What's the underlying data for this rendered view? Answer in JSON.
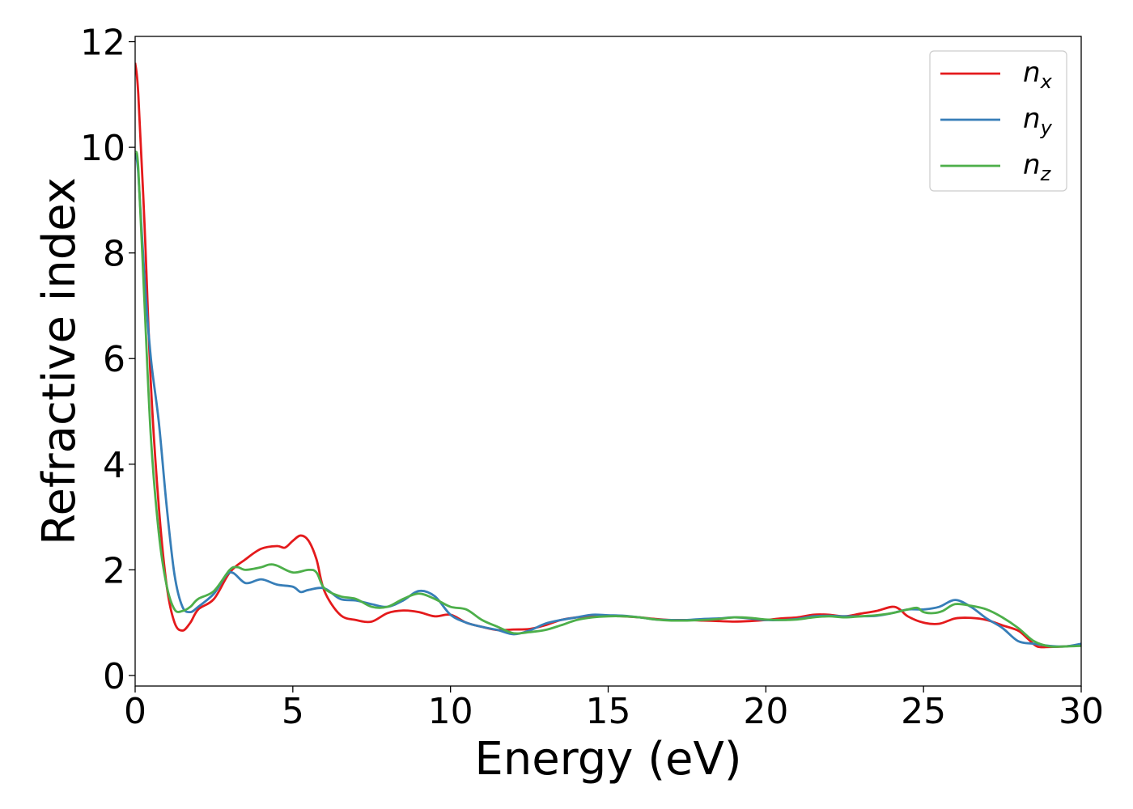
{
  "chart_data": {
    "type": "line",
    "title": "",
    "xlabel": "Energy (eV)",
    "ylabel": "Refractive index",
    "xlim": [
      0,
      30
    ],
    "ylim": [
      -0.2,
      12.1
    ],
    "xticks": [
      0,
      5,
      10,
      15,
      20,
      25,
      30
    ],
    "yticks": [
      0,
      2,
      4,
      6,
      8,
      10,
      12
    ],
    "grid": false,
    "legend_position": "top-right",
    "colors": {
      "n_x": "#e41a1c",
      "n_y": "#377eb8",
      "n_z": "#4daf4a"
    },
    "legend": [
      {
        "key": "n_x",
        "base": "n",
        "sub": "x"
      },
      {
        "key": "n_y",
        "base": "n",
        "sub": "y"
      },
      {
        "key": "n_z",
        "base": "n",
        "sub": "z"
      }
    ],
    "series": [
      {
        "key": "n_x",
        "x": [
          0,
          0.1,
          0.3,
          0.5,
          0.75,
          1.0,
          1.25,
          1.5,
          1.75,
          2.0,
          2.5,
          3.0,
          3.5,
          4.0,
          4.5,
          4.75,
          5.0,
          5.25,
          5.5,
          5.75,
          6.0,
          6.5,
          7.0,
          7.5,
          8.0,
          8.5,
          9.0,
          9.5,
          10.0,
          10.5,
          11.0,
          11.5,
          12.0,
          12.5,
          13.0,
          13.5,
          14.0,
          14.5,
          15.0,
          15.5,
          16.0,
          16.5,
          17.0,
          17.5,
          18.0,
          18.5,
          19.0,
          19.5,
          20.0,
          20.5,
          21.0,
          21.5,
          22.0,
          22.5,
          23.0,
          23.5,
          24.0,
          24.25,
          24.5,
          25.0,
          25.5,
          26.0,
          26.5,
          27.0,
          27.5,
          28.0,
          28.3,
          28.6,
          29.0,
          29.5,
          30.0
        ],
        "y": [
          11.6,
          11.0,
          8.5,
          5.5,
          3.2,
          1.7,
          1.0,
          0.85,
          1.0,
          1.25,
          1.45,
          1.95,
          2.2,
          2.4,
          2.45,
          2.42,
          2.55,
          2.65,
          2.55,
          2.2,
          1.6,
          1.15,
          1.05,
          1.02,
          1.18,
          1.23,
          1.2,
          1.12,
          1.15,
          1.0,
          0.92,
          0.86,
          0.87,
          0.88,
          0.95,
          1.05,
          1.1,
          1.12,
          1.13,
          1.12,
          1.1,
          1.07,
          1.05,
          1.05,
          1.04,
          1.03,
          1.02,
          1.03,
          1.05,
          1.08,
          1.1,
          1.15,
          1.15,
          1.12,
          1.17,
          1.22,
          1.3,
          1.25,
          1.12,
          1.0,
          0.98,
          1.08,
          1.09,
          1.05,
          0.95,
          0.85,
          0.7,
          0.55,
          0.54,
          0.55,
          0.58
        ]
      },
      {
        "key": "n_y",
        "x": [
          0,
          0.1,
          0.3,
          0.5,
          0.75,
          1.0,
          1.25,
          1.5,
          1.75,
          2.0,
          2.5,
          3.0,
          3.5,
          4.0,
          4.5,
          5.0,
          5.25,
          5.5,
          6.0,
          6.5,
          7.0,
          7.5,
          8.0,
          8.5,
          9.0,
          9.5,
          10.0,
          10.5,
          11.0,
          11.5,
          12.0,
          12.5,
          13.0,
          13.5,
          14.0,
          14.5,
          15.0,
          15.5,
          16.0,
          16.5,
          17.0,
          17.5,
          18.0,
          18.5,
          19.0,
          19.5,
          20.0,
          20.5,
          21.0,
          21.5,
          22.0,
          22.5,
          23.0,
          23.5,
          24.0,
          24.5,
          25.0,
          25.5,
          26.0,
          26.5,
          27.0,
          27.5,
          28.0,
          28.5,
          29.0,
          29.5,
          30.0
        ],
        "y": [
          9.9,
          9.5,
          7.5,
          6.0,
          4.8,
          3.2,
          1.9,
          1.3,
          1.2,
          1.3,
          1.55,
          1.95,
          1.75,
          1.82,
          1.72,
          1.68,
          1.58,
          1.62,
          1.65,
          1.45,
          1.42,
          1.35,
          1.3,
          1.42,
          1.6,
          1.5,
          1.15,
          1.0,
          0.92,
          0.86,
          0.78,
          0.85,
          0.98,
          1.05,
          1.1,
          1.15,
          1.14,
          1.13,
          1.1,
          1.06,
          1.05,
          1.05,
          1.07,
          1.08,
          1.1,
          1.08,
          1.05,
          1.05,
          1.07,
          1.12,
          1.13,
          1.12,
          1.12,
          1.13,
          1.18,
          1.25,
          1.25,
          1.3,
          1.43,
          1.3,
          1.08,
          0.9,
          0.65,
          0.6,
          0.56,
          0.55,
          0.6
        ]
      },
      {
        "key": "n_z",
        "x": [
          0,
          0.1,
          0.3,
          0.5,
          0.75,
          1.0,
          1.25,
          1.5,
          1.75,
          2.0,
          2.5,
          3.0,
          3.25,
          3.5,
          4.0,
          4.25,
          4.5,
          5.0,
          5.5,
          5.75,
          6.0,
          6.5,
          7.0,
          7.5,
          8.0,
          8.5,
          9.0,
          9.5,
          10.0,
          10.5,
          11.0,
          11.5,
          12.0,
          12.5,
          13.0,
          13.5,
          14.0,
          14.5,
          15.0,
          15.5,
          16.0,
          16.5,
          17.0,
          17.5,
          18.0,
          18.5,
          19.0,
          19.5,
          20.0,
          20.5,
          21.0,
          21.5,
          22.0,
          22.5,
          23.0,
          23.5,
          24.0,
          24.5,
          24.8,
          25.0,
          25.3,
          25.6,
          26.0,
          26.5,
          27.0,
          27.5,
          28.0,
          28.5,
          29.0,
          29.5,
          30.0
        ],
        "y": [
          9.9,
          9.6,
          7.0,
          4.5,
          2.7,
          1.7,
          1.25,
          1.22,
          1.3,
          1.45,
          1.6,
          2.0,
          2.05,
          2.0,
          2.05,
          2.1,
          2.08,
          1.95,
          2.0,
          1.95,
          1.65,
          1.5,
          1.45,
          1.3,
          1.3,
          1.45,
          1.55,
          1.45,
          1.3,
          1.25,
          1.05,
          0.92,
          0.8,
          0.82,
          0.86,
          0.95,
          1.05,
          1.1,
          1.12,
          1.12,
          1.1,
          1.06,
          1.04,
          1.04,
          1.05,
          1.07,
          1.1,
          1.09,
          1.06,
          1.05,
          1.06,
          1.1,
          1.12,
          1.1,
          1.12,
          1.14,
          1.18,
          1.25,
          1.28,
          1.2,
          1.18,
          1.22,
          1.35,
          1.32,
          1.25,
          1.1,
          0.9,
          0.65,
          0.55,
          0.55,
          0.56
        ]
      }
    ]
  }
}
